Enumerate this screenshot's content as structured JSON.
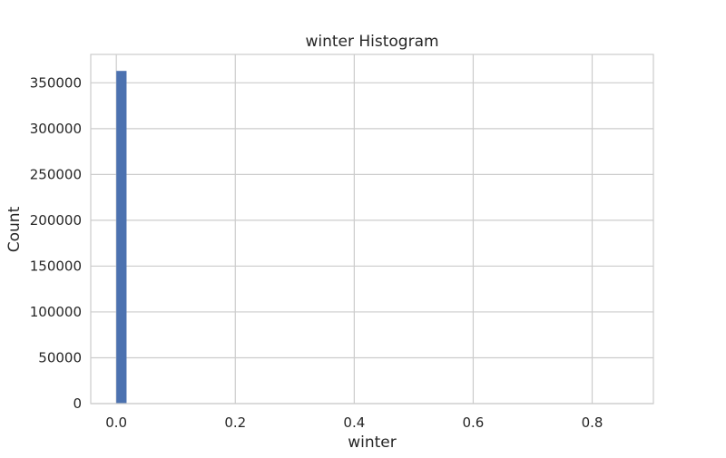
{
  "chart_data": {
    "type": "bar",
    "title": "winter Histogram",
    "xlabel": "winter",
    "ylabel": "Count",
    "xlim": [
      -0.043,
      0.903
    ],
    "ylim": [
      0,
      381000
    ],
    "xticks": [
      0.0,
      0.2,
      0.4,
      0.6,
      0.8
    ],
    "xtick_labels": [
      "0.0",
      "0.2",
      "0.4",
      "0.6",
      "0.8"
    ],
    "yticks": [
      0,
      50000,
      100000,
      150000,
      200000,
      250000,
      300000,
      350000
    ],
    "ytick_labels": [
      "0",
      "50000",
      "100000",
      "150000",
      "200000",
      "250000",
      "300000",
      "350000"
    ],
    "grid": true,
    "bar_color": "#4c72b0",
    "bins": [
      {
        "x0": 0.0,
        "x1": 0.0172,
        "count": 363000
      }
    ]
  }
}
